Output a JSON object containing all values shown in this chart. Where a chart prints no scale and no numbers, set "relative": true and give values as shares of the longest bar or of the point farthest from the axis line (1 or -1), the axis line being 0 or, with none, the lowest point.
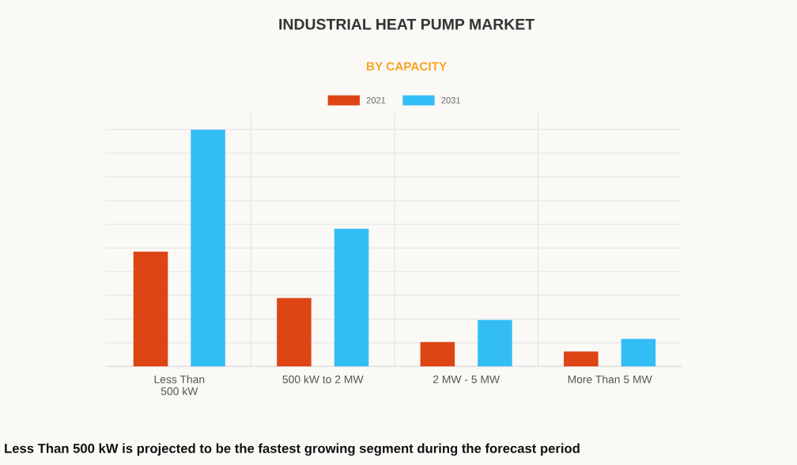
{
  "chart_data": {
    "type": "bar",
    "title": "INDUSTRIAL HEAT PUMP MARKET",
    "subtitle": "BY CAPACITY",
    "categories": [
      "Less Than\n500 kW",
      "500 kW to 2 MW",
      "2 MW - 5 MW",
      "More Than 5 MW"
    ],
    "series": [
      {
        "name": "2021",
        "color": "#dd4514",
        "values": [
          0.485,
          0.289,
          0.103,
          0.063
        ]
      },
      {
        "name": "2031",
        "color": "#33bdf5",
        "values": [
          1,
          0.581,
          0.196,
          0.116
        ]
      }
    ],
    "relative": true,
    "grid": true,
    "legend": "top",
    "annotations": [
      "Less Than 500 kW is projected to be the fastest growing segment during the forecast period"
    ]
  }
}
